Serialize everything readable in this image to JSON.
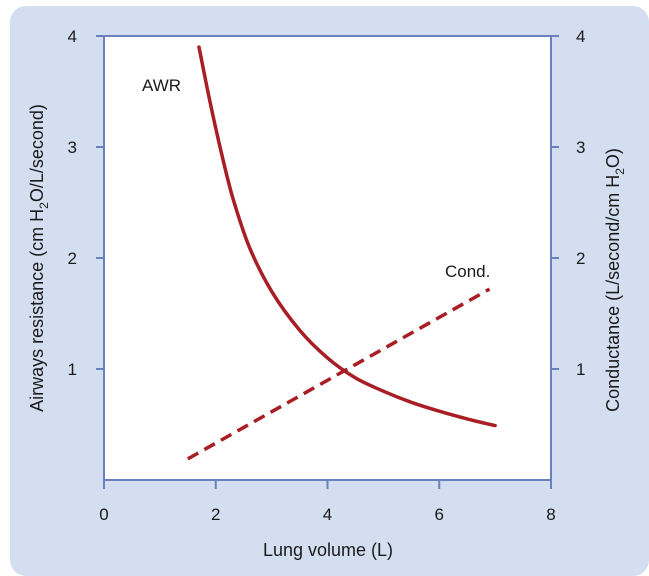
{
  "chart_data": {
    "type": "line",
    "xlabel": "Lung volume (L)",
    "ylabel_left": {
      "pre": "Airways resistance (cm H",
      "sub": "2",
      "post": "O/L/second)"
    },
    "ylabel_right": {
      "pre": "Conductance (L/second/cm H",
      "sub": "2",
      "post": "O)"
    },
    "xlim": [
      0,
      8
    ],
    "ylim_left": [
      0,
      4
    ],
    "ylim_right": [
      0,
      4
    ],
    "x_ticks": [
      "0",
      "2",
      "4",
      "6",
      "8"
    ],
    "y_ticks_left": [
      "1",
      "2",
      "3",
      "4"
    ],
    "y_ticks_right": [
      "1",
      "2",
      "3",
      "4"
    ],
    "grid": false,
    "series": [
      {
        "name": "AWR",
        "axis": "left",
        "style": "solid",
        "x": [
          1.7,
          1.9,
          2.1,
          2.3,
          2.6,
          3.0,
          3.5,
          4.0,
          4.5,
          5.0,
          5.5,
          6.0,
          6.5,
          7.0
        ],
        "y": [
          3.9,
          3.4,
          2.95,
          2.55,
          2.1,
          1.7,
          1.35,
          1.1,
          0.92,
          0.8,
          0.7,
          0.62,
          0.55,
          0.49
        ]
      },
      {
        "name": "Cond.",
        "axis": "right",
        "style": "dashed",
        "x": [
          1.5,
          6.9
        ],
        "y": [
          0.19,
          1.72
        ]
      }
    ],
    "colors": {
      "line": "#a81e24",
      "axis": "#6b80bf",
      "panel": "#d3dff0",
      "plot_bg": "#ffffff"
    }
  }
}
